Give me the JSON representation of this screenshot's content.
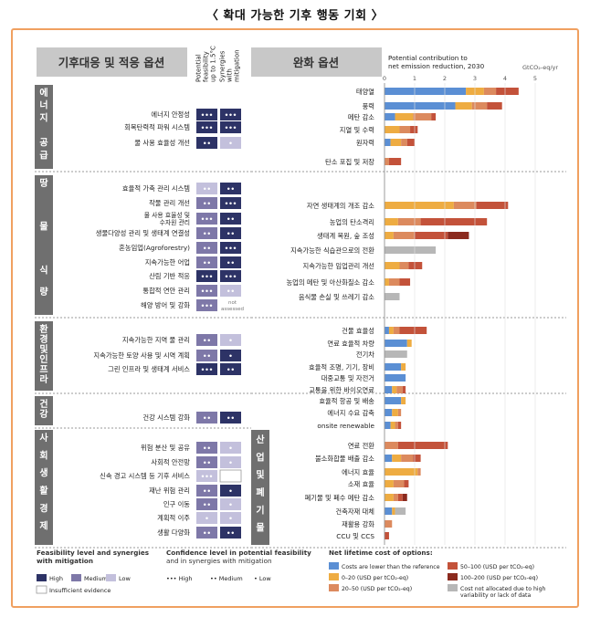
{
  "page_title": "〈 확대 가능한 기후 행동 기회 〉",
  "left_header": "기후대응 및 적응 옵션",
  "col_headers": [
    [
      "Potential",
      "feasibility",
      "up to 1.5°C"
    ],
    [
      "Synergies",
      "with",
      "mitigation"
    ]
  ],
  "right_header": "완화 옵션",
  "axis_title_lines": [
    "Potential contribution to",
    "net emission reduction, 2030"
  ],
  "axis_unit": "GtCO₂-eq/yr",
  "axis_ticks": [
    "0",
    "1",
    "2",
    "3",
    "4",
    "5"
  ],
  "not_assessed": [
    "not",
    "assessed"
  ],
  "colors": {
    "blue": "#5b8fd4",
    "orange": "#eeac42",
    "salmon": "#dc8a5e",
    "red": "#c3523a",
    "darkred": "#8b2a1e",
    "gray": "#b7b7b7",
    "high": "#2d3366",
    "medium": "#7e78a8",
    "low": "#c3c0dc"
  },
  "sectors": [
    {
      "left_label": [
        "에",
        "너",
        "지",
        "",
        "공",
        "급"
      ],
      "adaptation": [
        {
          "label": "에너지 안정성",
          "feasibility": "high",
          "f_conf": "•••",
          "synergy": "high",
          "s_conf": "•••"
        },
        {
          "label": "회복탄력적 파워 시스템",
          "feasibility": "high",
          "f_conf": "•••",
          "synergy": "high",
          "s_conf": "•••"
        },
        {
          "label": "물 사용 효율성 개선",
          "feasibility": "high",
          "f_conf": "••",
          "synergy": "low",
          "s_conf": "•"
        }
      ],
      "mitigation": [
        {
          "label": "태양열",
          "segments": [
            2.7,
            0.6,
            0.4,
            0.75
          ]
        },
        {
          "label": "풍력",
          "segments": [
            2.35,
            0.55,
            0.5,
            0.5
          ]
        },
        {
          "label": "메탄 감소",
          "segments": [
            0.35,
            0.6,
            0.6,
            0.15
          ]
        },
        {
          "label": "지열 및 수력",
          "segments": [
            0,
            0.5,
            0.35,
            0.25
          ]
        },
        {
          "label": "원자력",
          "segments": [
            0.2,
            0.35,
            0.2,
            0.25
          ]
        },
        {
          "label": "탄소 포집 및 저장",
          "segments": [
            0,
            0,
            0.15,
            0.4
          ]
        }
      ]
    },
    {
      "left_label": [
        "땅",
        "",
        "물",
        "",
        "식",
        "량"
      ],
      "adaptation": [
        {
          "label": "효율적 가축 관리 시스템",
          "feasibility": "low",
          "f_conf": "••",
          "synergy": "high",
          "s_conf": "••"
        },
        {
          "label": "작물 관리 개선",
          "feasibility": "medium",
          "f_conf": "••",
          "synergy": "high",
          "s_conf": "•••"
        },
        {
          "label": "물 사용 효율성 및 수자원 관리",
          "feasibility": "medium",
          "f_conf": "•••",
          "synergy": "high",
          "s_conf": "••"
        },
        {
          "label": "생물다양성 관리 및 생태계 연결성",
          "feasibility": "medium",
          "f_conf": "••",
          "synergy": "high",
          "s_conf": "••"
        },
        {
          "label": "혼농임업(Agroforestry)",
          "feasibility": "medium",
          "f_conf": "••",
          "synergy": "high",
          "s_conf": "•••"
        },
        {
          "label": "지속가능한 어업",
          "feasibility": "medium",
          "f_conf": "••",
          "synergy": "high",
          "s_conf": "••"
        },
        {
          "label": "산림 기반 적응",
          "feasibility": "high",
          "f_conf": "•••",
          "synergy": "high",
          "s_conf": "•••"
        },
        {
          "label": "통합적 연안 관리",
          "feasibility": "medium",
          "f_conf": "•••",
          "synergy": "low",
          "s_conf": "••"
        },
        {
          "label": "해양 방어 및 강화",
          "feasibility": "medium",
          "f_conf": "•••",
          "synergy": "none",
          "s_conf": ""
        }
      ],
      "mitigation": [
        {
          "label": "자연 생태계의 개조 감소",
          "segments": [
            0,
            2.3,
            0.75,
            1.05
          ]
        },
        {
          "label": "농업의 탄소격리",
          "segments": [
            0,
            0.45,
            0.75,
            2.2
          ]
        },
        {
          "label": "생태계 복원, 숲 조성",
          "segments": [
            0,
            0.3,
            0.7,
            1.1,
            0.7
          ]
        },
        {
          "label": "지속가능한 식습관으로의 전환",
          "segments": [
            0,
            0,
            0,
            0,
            0,
            1.7
          ]
        },
        {
          "label": "지속가능한 임업관리 개선",
          "segments": [
            0,
            0.5,
            0.3,
            0.45
          ]
        },
        {
          "label": "농업의 메탄 및 아산화질소 감소",
          "segments": [
            0,
            0.15,
            0.35,
            0.35
          ]
        },
        {
          "label": "음식물 손실 및 쓰레기 감소",
          "segments": [
            0,
            0,
            0,
            0,
            0,
            0.5
          ]
        }
      ]
    },
    {
      "left_label": [
        "환",
        "경",
        "및",
        "인",
        "프",
        "라"
      ],
      "adaptation": [
        {
          "label": "지속가능한 지역 물 관리",
          "feasibility": "medium",
          "f_conf": "••",
          "synergy": "low",
          "s_conf": "•"
        },
        {
          "label": "지속가능한 토양 사용 및 시역 계획",
          "feasibility": "medium",
          "f_conf": "••",
          "synergy": "high",
          "s_conf": "•"
        },
        {
          "label": "그린 인프라 및 생태계 서비스",
          "feasibility": "high",
          "f_conf": "•••",
          "synergy": "high",
          "s_conf": "••"
        }
      ],
      "mitigation": [
        {
          "label": "건물 효율성",
          "segments": [
            0.15,
            0.15,
            0.2,
            0.9
          ]
        },
        {
          "label": "연료 효율적 차량",
          "segments": [
            0.75,
            0.15
          ]
        },
        {
          "label": "전기차",
          "segments": [
            0,
            0,
            0,
            0,
            0,
            0.75
          ]
        },
        {
          "label": "효율적 조명, 기기, 장비",
          "segments": [
            0.55,
            0.15
          ]
        },
        {
          "label": "대중교통 및 자전거",
          "segments": [
            0.7
          ]
        },
        {
          "label": "교통을 위한 바이오연료",
          "segments": [
            0.25,
            0.15,
            0.2,
            0.1
          ]
        },
        {
          "label": "효율적 항공 및 배송",
          "segments": [
            0.55,
            0.15
          ]
        },
        {
          "label": "에너지 수요 감축",
          "segments": [
            0.25,
            0.2,
            0.1
          ]
        },
        {
          "label": "onsite renewable",
          "segments": [
            0.2,
            0.15,
            0.1,
            0.1
          ]
        }
      ]
    },
    {
      "left_label": [
        "건",
        "강"
      ],
      "adaptation": [
        {
          "label": "건강 시스템 강화",
          "feasibility": "medium",
          "f_conf": "••",
          "synergy": "high",
          "s_conf": "••"
        }
      ],
      "mitigation": []
    },
    {
      "left_label": [
        "사",
        "회",
        "생",
        "활",
        "경",
        "제"
      ],
      "adaptation": [
        {
          "label": "위험 분산 및 공유",
          "feasibility": "medium",
          "f_conf": "••",
          "synergy": "low",
          "s_conf": "•"
        },
        {
          "label": "사회적 안전망",
          "feasibility": "medium",
          "f_conf": "••",
          "synergy": "low",
          "s_conf": "•"
        },
        {
          "label": "신속 경고 시스템 등 기후 서비스",
          "feasibility": "low",
          "f_conf": "•••",
          "synergy": "none_box",
          "s_conf": ""
        },
        {
          "label": "재난 위험 관리",
          "feasibility": "medium",
          "f_conf": "••",
          "synergy": "high",
          "s_conf": "•"
        },
        {
          "label": "인구 이동",
          "feasibility": "medium",
          "f_conf": "••",
          "synergy": "low",
          "s_conf": "•"
        },
        {
          "label": "계획적 이주",
          "feasibility": "low",
          "f_conf": "•",
          "synergy": "low",
          "s_conf": "•"
        },
        {
          "label": "생활 다양화",
          "feasibility": "medium",
          "f_conf": "••",
          "synergy": "high",
          "s_conf": "••"
        }
      ],
      "right_label": [
        "산",
        "업",
        "및",
        "폐",
        "기",
        "물"
      ],
      "mitigation": [
        {
          "label": "연료 전환",
          "segments": [
            0,
            0,
            0.45,
            1.65
          ]
        },
        {
          "label": "불소화합물 배출 감소",
          "segments": [
            0.25,
            0.3,
            0.4,
            0.25
          ]
        },
        {
          "label": "에너지 효율",
          "segments": [
            0,
            1.1,
            0.1
          ]
        },
        {
          "label": "소재 효율",
          "segments": [
            0,
            0.3,
            0.35,
            0.15
          ]
        },
        {
          "label": "폐기물 및 폐수 메탄 감소",
          "segments": [
            0,
            0.3,
            0.15,
            0.15,
            0.15
          ]
        },
        {
          "label": "건축자재 대체",
          "segments": [
            0.25,
            0.1,
            0,
            0,
            0,
            0.35
          ]
        },
        {
          "label": "재활용 강화",
          "segments": [
            0,
            0,
            0.25
          ]
        },
        {
          "label": "CCU 및 CCS",
          "segments": [
            0,
            0,
            0,
            0.15
          ]
        }
      ]
    }
  ],
  "legend": {
    "feas_title": [
      "Feasibility level and synergies",
      "with mitigation"
    ],
    "feas_items": [
      "High",
      "Medium",
      "Low",
      "Insufficient evidence"
    ],
    "conf_title": [
      "Confidence level in potential feasibility",
      "and in synergies with mitigation"
    ],
    "conf_items": [
      "••• High",
      "•• Medium",
      "• Low"
    ],
    "cost_title": "Net lifetime cost of options:",
    "cost_items": [
      [
        "Costs are lower than the reference"
      ],
      [
        "0–20 (USD per tCO₂-eq)"
      ],
      [
        "20–50 (USD per tCO₂-eq)"
      ],
      [
        "50–100 (USD per tCO₂-eq)"
      ],
      [
        "100–200 (USD per tCO₂-eq)"
      ],
      [
        "Cost not allocated due to high",
        "variability or lack of data"
      ]
    ]
  }
}
